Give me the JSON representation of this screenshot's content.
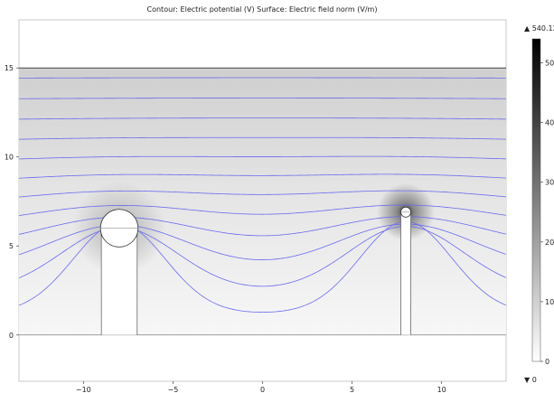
{
  "chart_data": {
    "type": "heatmap",
    "title": "Contour: Electric potential (V) Surface: Electric field norm (V/m)",
    "xlabel": "",
    "ylabel": "",
    "xlim": [
      -13.6,
      13.6
    ],
    "ylim": [
      -2.6,
      17.7
    ],
    "x_ticks": [
      -10,
      -5,
      0,
      5,
      10
    ],
    "y_ticks": [
      0,
      5,
      10,
      15
    ],
    "domain": {
      "x": [
        -13.6,
        13.6
      ],
      "y": [
        0,
        15
      ]
    },
    "contour_color": "#6a6af0",
    "contour_levels_y_far": [
      1.2,
      2.4,
      3.6,
      4.8,
      6.0,
      7.2,
      8.4,
      9.6,
      10.8,
      12.0,
      13.2,
      14.4
    ],
    "electrodes": [
      {
        "name": "left-electrode",
        "x_center": -8.0,
        "half_width": 1.0,
        "top_radius": 1.05,
        "y_top_center": 6.0
      },
      {
        "name": "right-electrode",
        "x_center": 8.0,
        "half_width": 0.28,
        "top_radius": 0.28,
        "y_top_center": 6.9
      }
    ],
    "colorbar": {
      "max_label": "▲ 540.12",
      "min_label": "▼ 0",
      "range": [
        0,
        540.12
      ],
      "ticks": [
        0,
        100,
        200,
        300,
        400,
        500
      ],
      "colormap": [
        "#ffffff",
        "#000000"
      ],
      "grid": false
    }
  }
}
